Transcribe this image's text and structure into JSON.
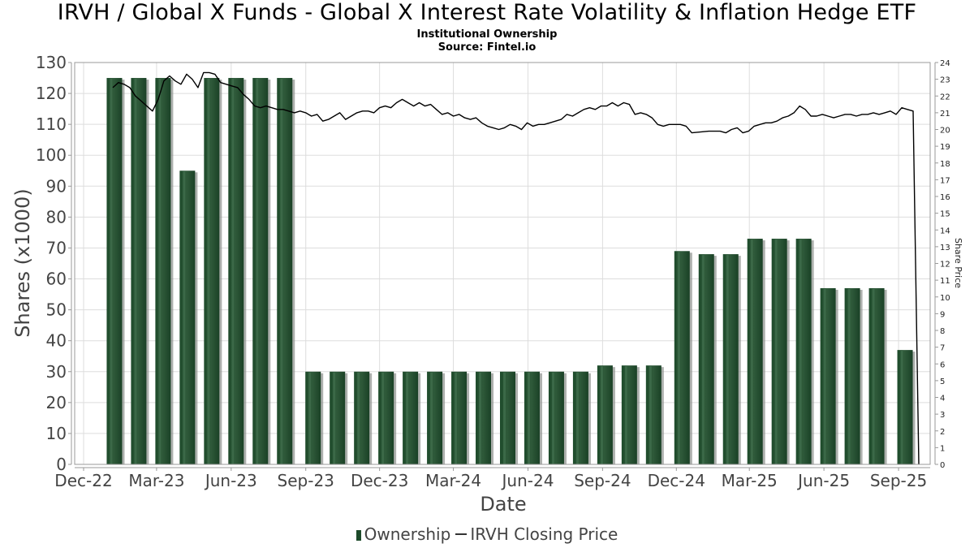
{
  "title": "IRVH / Global X Funds - Global X Interest Rate Volatility & Inflation Hedge ETF",
  "subtitle": "Institutional Ownership",
  "source": "Source: Fintel.io",
  "legend": {
    "ownership": "Ownership",
    "price": "IRVH Closing Price"
  },
  "colors": {
    "bar": "#1d4a2a",
    "bar_highlight": "#4a7a57",
    "bar_shadow": "#8a8f8a",
    "line": "#000000",
    "grid": "#dddddd"
  },
  "chart_data": {
    "type": "bar",
    "title": "IRVH / Global X Funds - Global X Interest Rate Volatility & Inflation Hedge ETF",
    "subtitle": "Institutional Ownership",
    "xlabel": "Date",
    "ylabel": "Shares (x1000)",
    "y2label": "Share Price",
    "ylim": [
      0,
      130
    ],
    "y2lim": [
      0,
      24
    ],
    "yticks": [
      0,
      10,
      20,
      30,
      40,
      50,
      60,
      70,
      80,
      90,
      100,
      110,
      120,
      130
    ],
    "y2ticks": [
      0,
      1,
      2,
      3,
      4,
      5,
      6,
      7,
      8,
      9,
      10,
      11,
      12,
      13,
      14,
      15,
      16,
      17,
      18,
      19,
      20,
      21,
      22,
      23,
      24
    ],
    "xlim": [
      "2022-11-20",
      "2025-10-10"
    ],
    "xticks": [
      {
        "date": "2022-12-01",
        "label": "Dec-22"
      },
      {
        "date": "2023-03-01",
        "label": "Mar-23"
      },
      {
        "date": "2023-06-01",
        "label": "Jun-23"
      },
      {
        "date": "2023-09-01",
        "label": "Sep-23"
      },
      {
        "date": "2023-12-01",
        "label": "Dec-23"
      },
      {
        "date": "2024-03-01",
        "label": "Mar-24"
      },
      {
        "date": "2024-06-01",
        "label": "Jun-24"
      },
      {
        "date": "2024-09-01",
        "label": "Sep-24"
      },
      {
        "date": "2024-12-01",
        "label": "Dec-24"
      },
      {
        "date": "2025-03-01",
        "label": "Mar-25"
      },
      {
        "date": "2025-06-01",
        "label": "Jun-25"
      },
      {
        "date": "2025-09-01",
        "label": "Sep-25"
      }
    ],
    "grid": true,
    "legend_position": "bottom",
    "series": [
      {
        "name": "Ownership",
        "type": "bar",
        "axis": "left",
        "points": [
          {
            "x": "2023-01-08",
            "y": 125
          },
          {
            "x": "2023-02-07",
            "y": 125
          },
          {
            "x": "2023-03-09",
            "y": 125
          },
          {
            "x": "2023-04-08",
            "y": 95
          },
          {
            "x": "2023-05-08",
            "y": 125
          },
          {
            "x": "2023-06-07",
            "y": 125
          },
          {
            "x": "2023-07-07",
            "y": 125
          },
          {
            "x": "2023-08-06",
            "y": 125
          },
          {
            "x": "2023-09-10",
            "y": 30
          },
          {
            "x": "2023-10-10",
            "y": 30
          },
          {
            "x": "2023-11-09",
            "y": 30
          },
          {
            "x": "2023-12-09",
            "y": 30
          },
          {
            "x": "2024-01-08",
            "y": 30
          },
          {
            "x": "2024-02-07",
            "y": 30
          },
          {
            "x": "2024-03-08",
            "y": 30
          },
          {
            "x": "2024-04-07",
            "y": 30
          },
          {
            "x": "2024-05-07",
            "y": 30
          },
          {
            "x": "2024-06-06",
            "y": 30
          },
          {
            "x": "2024-07-06",
            "y": 30
          },
          {
            "x": "2024-08-05",
            "y": 30
          },
          {
            "x": "2024-09-04",
            "y": 32
          },
          {
            "x": "2024-10-04",
            "y": 32
          },
          {
            "x": "2024-11-03",
            "y": 32
          },
          {
            "x": "2024-12-08",
            "y": 69
          },
          {
            "x": "2025-01-07",
            "y": 68
          },
          {
            "x": "2025-02-06",
            "y": 68
          },
          {
            "x": "2025-03-08",
            "y": 73
          },
          {
            "x": "2025-04-07",
            "y": 73
          },
          {
            "x": "2025-05-07",
            "y": 73
          },
          {
            "x": "2025-06-06",
            "y": 57
          },
          {
            "x": "2025-07-06",
            "y": 57
          },
          {
            "x": "2025-08-05",
            "y": 57
          },
          {
            "x": "2025-09-09",
            "y": 37
          }
        ]
      },
      {
        "name": "IRVH Closing Price",
        "type": "line",
        "axis": "right",
        "points": [
          {
            "x": "2023-01-06",
            "y": 22.5
          },
          {
            "x": "2023-01-13",
            "y": 22.8
          },
          {
            "x": "2023-01-20",
            "y": 22.7
          },
          {
            "x": "2023-01-27",
            "y": 22.5
          },
          {
            "x": "2023-02-03",
            "y": 22.0
          },
          {
            "x": "2023-02-10",
            "y": 21.7
          },
          {
            "x": "2023-02-17",
            "y": 21.4
          },
          {
            "x": "2023-02-24",
            "y": 21.1
          },
          {
            "x": "2023-03-03",
            "y": 21.8
          },
          {
            "x": "2023-03-10",
            "y": 22.9
          },
          {
            "x": "2023-03-17",
            "y": 23.2
          },
          {
            "x": "2023-03-24",
            "y": 22.9
          },
          {
            "x": "2023-03-31",
            "y": 22.7
          },
          {
            "x": "2023-04-07",
            "y": 23.3
          },
          {
            "x": "2023-04-14",
            "y": 23.0
          },
          {
            "x": "2023-04-21",
            "y": 22.5
          },
          {
            "x": "2023-04-28",
            "y": 23.4
          },
          {
            "x": "2023-05-05",
            "y": 23.4
          },
          {
            "x": "2023-05-12",
            "y": 23.3
          },
          {
            "x": "2023-05-19",
            "y": 22.8
          },
          {
            "x": "2023-05-26",
            "y": 22.7
          },
          {
            "x": "2023-06-02",
            "y": 22.6
          },
          {
            "x": "2023-06-09",
            "y": 22.5
          },
          {
            "x": "2023-06-16",
            "y": 22.1
          },
          {
            "x": "2023-06-23",
            "y": 21.8
          },
          {
            "x": "2023-06-30",
            "y": 21.4
          },
          {
            "x": "2023-07-07",
            "y": 21.3
          },
          {
            "x": "2023-07-14",
            "y": 21.4
          },
          {
            "x": "2023-07-21",
            "y": 21.3
          },
          {
            "x": "2023-07-28",
            "y": 21.2
          },
          {
            "x": "2023-08-04",
            "y": 21.2
          },
          {
            "x": "2023-08-11",
            "y": 21.1
          },
          {
            "x": "2023-08-18",
            "y": 21.0
          },
          {
            "x": "2023-08-25",
            "y": 21.1
          },
          {
            "x": "2023-09-01",
            "y": 21.0
          },
          {
            "x": "2023-09-08",
            "y": 20.8
          },
          {
            "x": "2023-09-15",
            "y": 20.9
          },
          {
            "x": "2023-09-22",
            "y": 20.5
          },
          {
            "x": "2023-09-29",
            "y": 20.6
          },
          {
            "x": "2023-10-06",
            "y": 20.8
          },
          {
            "x": "2023-10-13",
            "y": 21.0
          },
          {
            "x": "2023-10-20",
            "y": 20.6
          },
          {
            "x": "2023-10-27",
            "y": 20.8
          },
          {
            "x": "2023-11-03",
            "y": 21.0
          },
          {
            "x": "2023-11-10",
            "y": 21.1
          },
          {
            "x": "2023-11-17",
            "y": 21.1
          },
          {
            "x": "2023-11-24",
            "y": 21.0
          },
          {
            "x": "2023-12-01",
            "y": 21.3
          },
          {
            "x": "2023-12-08",
            "y": 21.4
          },
          {
            "x": "2023-12-15",
            "y": 21.3
          },
          {
            "x": "2023-12-22",
            "y": 21.6
          },
          {
            "x": "2023-12-29",
            "y": 21.8
          },
          {
            "x": "2024-01-05",
            "y": 21.6
          },
          {
            "x": "2024-01-12",
            "y": 21.4
          },
          {
            "x": "2024-01-19",
            "y": 21.6
          },
          {
            "x": "2024-01-26",
            "y": 21.4
          },
          {
            "x": "2024-02-02",
            "y": 21.5
          },
          {
            "x": "2024-02-09",
            "y": 21.2
          },
          {
            "x": "2024-02-16",
            "y": 20.9
          },
          {
            "x": "2024-02-23",
            "y": 21.0
          },
          {
            "x": "2024-03-01",
            "y": 20.8
          },
          {
            "x": "2024-03-08",
            "y": 20.9
          },
          {
            "x": "2024-03-15",
            "y": 20.7
          },
          {
            "x": "2024-03-22",
            "y": 20.6
          },
          {
            "x": "2024-03-29",
            "y": 20.7
          },
          {
            "x": "2024-04-05",
            "y": 20.4
          },
          {
            "x": "2024-04-12",
            "y": 20.2
          },
          {
            "x": "2024-04-19",
            "y": 20.1
          },
          {
            "x": "2024-04-26",
            "y": 20.0
          },
          {
            "x": "2024-05-03",
            "y": 20.1
          },
          {
            "x": "2024-05-10",
            "y": 20.3
          },
          {
            "x": "2024-05-17",
            "y": 20.2
          },
          {
            "x": "2024-05-24",
            "y": 20.0
          },
          {
            "x": "2024-05-31",
            "y": 20.4
          },
          {
            "x": "2024-06-07",
            "y": 20.2
          },
          {
            "x": "2024-06-14",
            "y": 20.3
          },
          {
            "x": "2024-06-21",
            "y": 20.3
          },
          {
            "x": "2024-06-28",
            "y": 20.4
          },
          {
            "x": "2024-07-05",
            "y": 20.5
          },
          {
            "x": "2024-07-12",
            "y": 20.6
          },
          {
            "x": "2024-07-19",
            "y": 20.9
          },
          {
            "x": "2024-07-26",
            "y": 20.8
          },
          {
            "x": "2024-08-02",
            "y": 21.0
          },
          {
            "x": "2024-08-09",
            "y": 21.2
          },
          {
            "x": "2024-08-16",
            "y": 21.3
          },
          {
            "x": "2024-08-23",
            "y": 21.2
          },
          {
            "x": "2024-08-30",
            "y": 21.4
          },
          {
            "x": "2024-09-06",
            "y": 21.4
          },
          {
            "x": "2024-09-13",
            "y": 21.6
          },
          {
            "x": "2024-09-20",
            "y": 21.4
          },
          {
            "x": "2024-09-27",
            "y": 21.6
          },
          {
            "x": "2024-10-04",
            "y": 21.5
          },
          {
            "x": "2024-10-11",
            "y": 20.9
          },
          {
            "x": "2024-10-18",
            "y": 21.0
          },
          {
            "x": "2024-10-25",
            "y": 20.9
          },
          {
            "x": "2024-11-01",
            "y": 20.7
          },
          {
            "x": "2024-11-08",
            "y": 20.3
          },
          {
            "x": "2024-11-15",
            "y": 20.2
          },
          {
            "x": "2024-11-22",
            "y": 20.3
          },
          {
            "x": "2024-11-29",
            "y": 20.3
          },
          {
            "x": "2024-12-06",
            "y": 20.3
          },
          {
            "x": "2024-12-13",
            "y": 20.2
          },
          {
            "x": "2024-12-20",
            "y": 19.8
          },
          {
            "x": "2025-01-10",
            "y": 19.9
          },
          {
            "x": "2025-01-24",
            "y": 19.9
          },
          {
            "x": "2025-01-31",
            "y": 19.8
          },
          {
            "x": "2025-02-07",
            "y": 20.0
          },
          {
            "x": "2025-02-14",
            "y": 20.1
          },
          {
            "x": "2025-02-21",
            "y": 19.8
          },
          {
            "x": "2025-02-28",
            "y": 19.9
          },
          {
            "x": "2025-03-07",
            "y": 20.2
          },
          {
            "x": "2025-03-14",
            "y": 20.3
          },
          {
            "x": "2025-03-21",
            "y": 20.4
          },
          {
            "x": "2025-03-28",
            "y": 20.4
          },
          {
            "x": "2025-04-04",
            "y": 20.5
          },
          {
            "x": "2025-04-11",
            "y": 20.7
          },
          {
            "x": "2025-04-18",
            "y": 20.8
          },
          {
            "x": "2025-04-25",
            "y": 21.0
          },
          {
            "x": "2025-05-02",
            "y": 21.4
          },
          {
            "x": "2025-05-09",
            "y": 21.2
          },
          {
            "x": "2025-05-16",
            "y": 20.8
          },
          {
            "x": "2025-05-23",
            "y": 20.8
          },
          {
            "x": "2025-05-30",
            "y": 20.9
          },
          {
            "x": "2025-06-06",
            "y": 20.8
          },
          {
            "x": "2025-06-13",
            "y": 20.7
          },
          {
            "x": "2025-06-20",
            "y": 20.8
          },
          {
            "x": "2025-06-27",
            "y": 20.9
          },
          {
            "x": "2025-07-04",
            "y": 20.9
          },
          {
            "x": "2025-07-11",
            "y": 20.8
          },
          {
            "x": "2025-07-18",
            "y": 20.9
          },
          {
            "x": "2025-07-25",
            "y": 20.9
          },
          {
            "x": "2025-08-01",
            "y": 21.0
          },
          {
            "x": "2025-08-08",
            "y": 20.9
          },
          {
            "x": "2025-08-15",
            "y": 21.0
          },
          {
            "x": "2025-08-22",
            "y": 21.1
          },
          {
            "x": "2025-08-29",
            "y": 20.9
          },
          {
            "x": "2025-09-05",
            "y": 21.3
          },
          {
            "x": "2025-09-12",
            "y": 21.2
          },
          {
            "x": "2025-09-19",
            "y": 21.1
          },
          {
            "x": "2025-09-26",
            "y": 0
          }
        ]
      }
    ]
  }
}
